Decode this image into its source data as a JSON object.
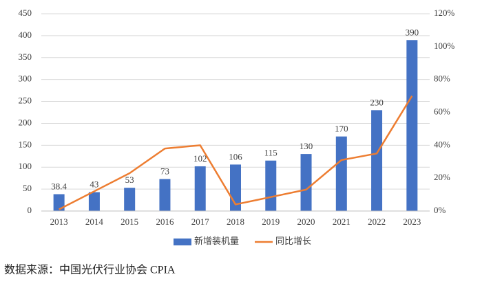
{
  "chart_data": {
    "type": "bar",
    "categories": [
      "2013",
      "2014",
      "2015",
      "2016",
      "2017",
      "2018",
      "2019",
      "2020",
      "2021",
      "2022",
      "2023"
    ],
    "series": [
      {
        "name": "新增装机量",
        "color": "#4472c4",
        "type": "bar",
        "values": [
          38.4,
          43,
          53,
          73,
          102,
          106,
          115,
          130,
          170,
          230,
          390
        ]
      },
      {
        "name": "同比增长",
        "color": "#ed7d31",
        "type": "line",
        "axis": "y2",
        "values": [
          1,
          12,
          23,
          38,
          40,
          4,
          8.5,
          13,
          31,
          35,
          70
        ]
      }
    ],
    "ylim": [
      0,
      450
    ],
    "yticks": [
      0,
      50,
      100,
      150,
      200,
      250,
      300,
      350,
      400,
      450
    ],
    "y2lim": [
      0,
      120
    ],
    "y2ticks": [
      {
        "value": 0,
        "label": "0%"
      },
      {
        "value": 20,
        "label": "20%"
      },
      {
        "value": 40,
        "label": "40%"
      },
      {
        "value": 60,
        "label": "60%"
      },
      {
        "value": 80,
        "label": "80%"
      },
      {
        "value": 100,
        "label": "100%"
      },
      {
        "value": 120,
        "label": "120%"
      }
    ],
    "grid": true,
    "legend": "bottom"
  },
  "source": "数据来源：中国光伏行业协会 CPIA"
}
